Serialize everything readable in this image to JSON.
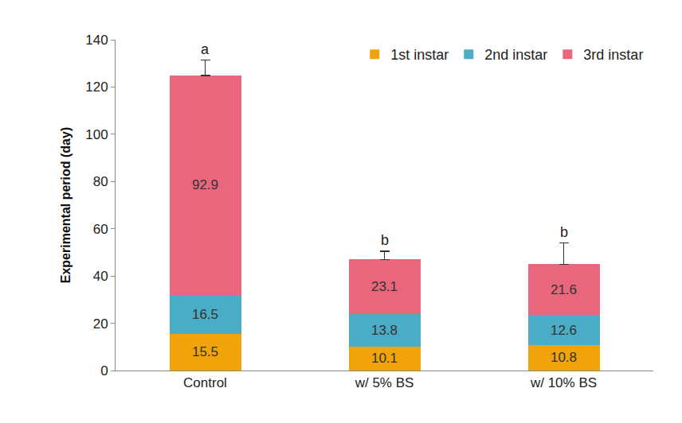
{
  "chart_data": {
    "type": "bar",
    "stacked": true,
    "data_labels": true,
    "grid": false,
    "legend": "top right",
    "y_label": "Experimental period (day)",
    "categories": [
      "Control",
      "w/ 5% BS",
      "w/ 10% BS"
    ],
    "series": [
      {
        "name": "1st instar",
        "color": "#F0A30A",
        "values": [
          15.5,
          10.1,
          10.8
        ]
      },
      {
        "name": "2nd instar",
        "color": "#4BACC6",
        "values": [
          16.5,
          13.8,
          12.6
        ]
      },
      {
        "name": "3rd instar",
        "color": "#E8677C",
        "values": [
          92.9,
          23.1,
          21.6
        ],
        "error": [
          6.5,
          3.5,
          9
        ]
      }
    ],
    "significance_letters": [
      "a",
      "b",
      "b"
    ],
    "ylim": [
      0,
      140
    ],
    "yticks": [
      0,
      20,
      40,
      60,
      80,
      100,
      120,
      140
    ]
  }
}
